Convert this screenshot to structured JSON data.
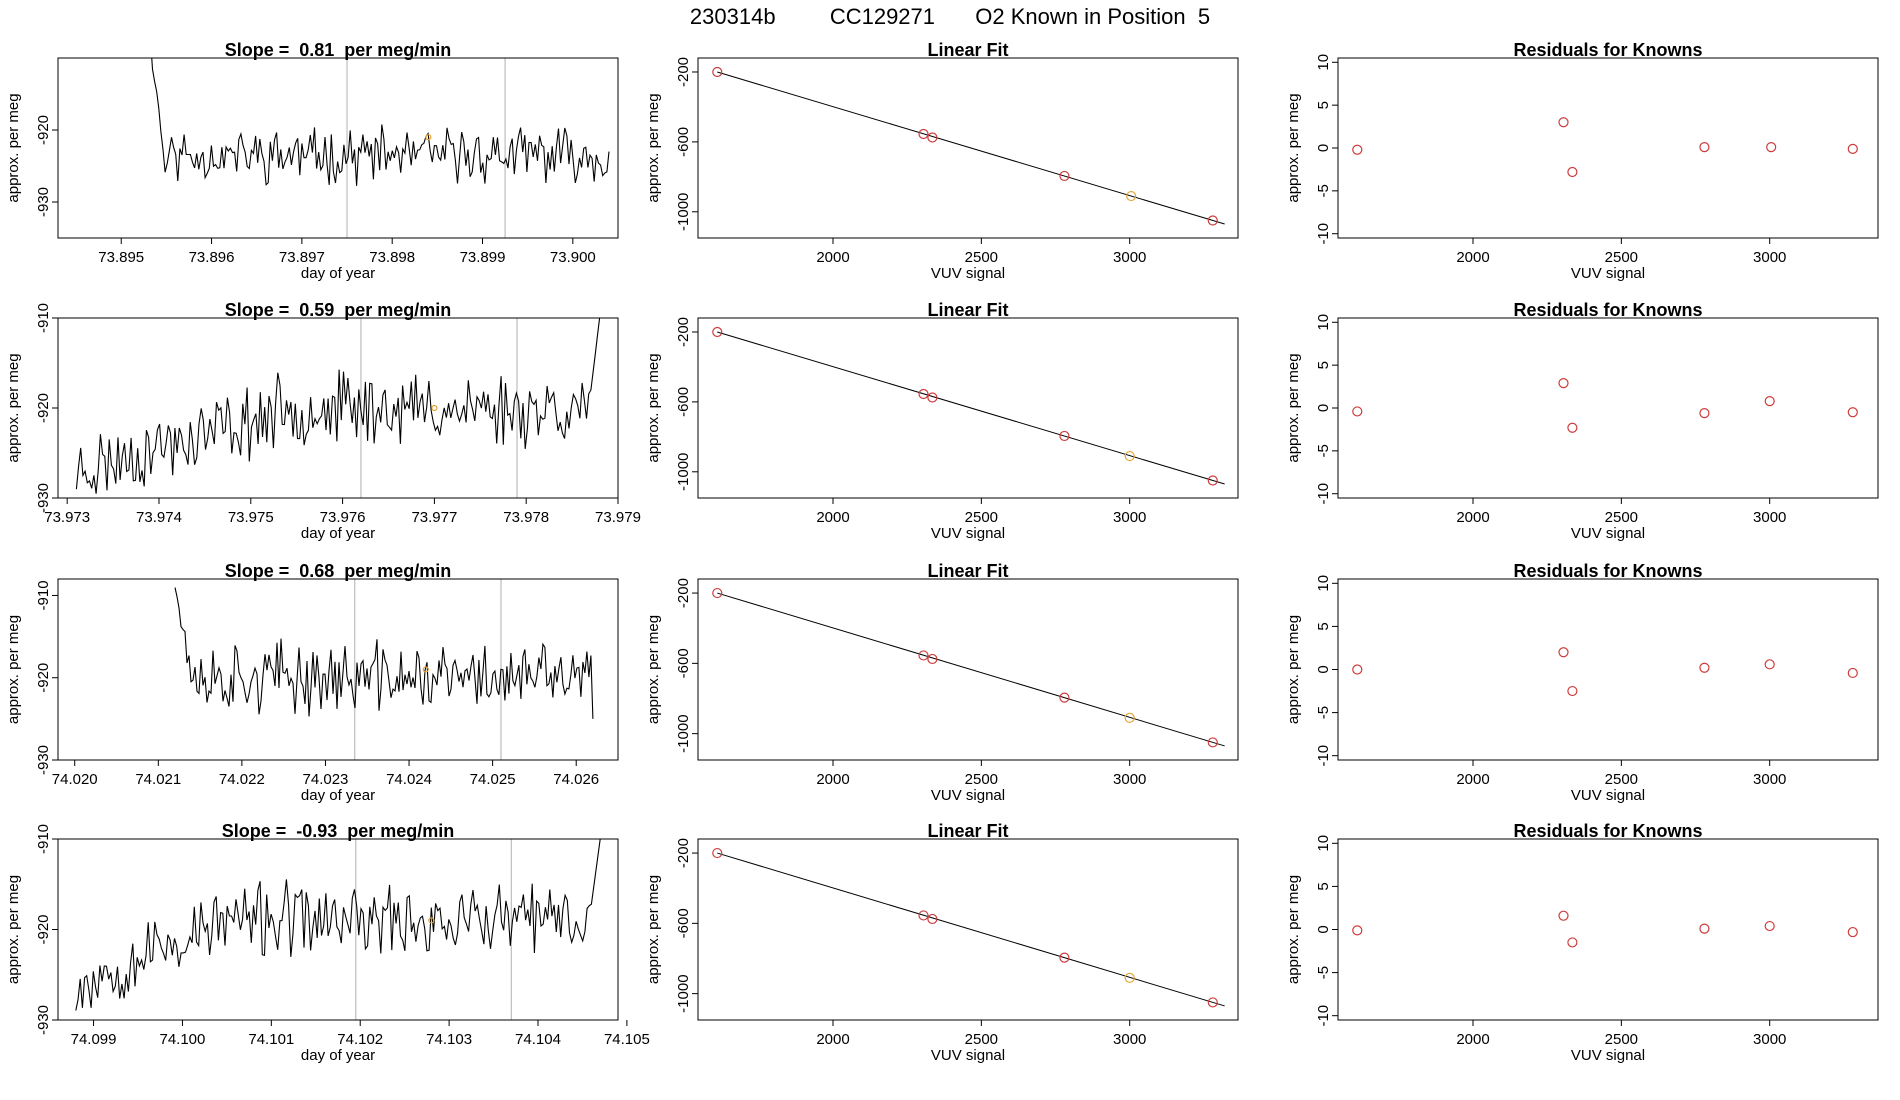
{
  "header": {
    "run_id": "230314b",
    "cylinder": "CC129271",
    "description": "O2 Known in Position  5"
  },
  "colors": {
    "trace": "#000000",
    "marker_red": "#cd3b3b",
    "marker_orange": "#e8a330",
    "vline": "#bdbdbd"
  },
  "chart_data": [
    {
      "id": "ts-1",
      "type": "line",
      "title": "Slope =  0.81  per meg/min",
      "xlabel": "day of year",
      "ylabel": "approx. per meg",
      "xlim": [
        73.8943,
        73.9005
      ],
      "ylim": [
        -935,
        -910
      ],
      "xticks": [
        "73.895",
        "73.896",
        "73.897",
        "73.898",
        "73.899",
        "73.900"
      ],
      "yticks": [
        "-920",
        "-930"
      ],
      "vlines": [
        73.8975,
        73.89925
      ],
      "series": [
        {
          "start": 73.8953,
          "end": 73.9004,
          "n": 220,
          "mean": -923.5,
          "amp": 2.8,
          "seed": 11,
          "spike_x": 73.8953,
          "spike_y": -906,
          "spike_len": 8,
          "end_y": -923
        }
      ],
      "marker": {
        "x": 73.8984,
        "y": -921
      }
    },
    {
      "id": "ts-2",
      "type": "line",
      "title": "Slope =  0.59  per meg/min",
      "xlabel": "day of year",
      "ylabel": "approx. per meg",
      "xlim": [
        73.9729,
        73.979
      ],
      "ylim": [
        -930,
        -910
      ],
      "xticks": [
        "73.973",
        "73.974",
        "73.975",
        "73.976",
        "73.977",
        "73.978",
        "73.979"
      ],
      "yticks": [
        "-910",
        "-920",
        "-930"
      ],
      "vlines": [
        73.9762,
        73.9779
      ],
      "series": [
        {
          "start": 73.9731,
          "end": 73.9788,
          "n": 240,
          "mean": -920,
          "amp": 3.0,
          "seed": 23,
          "trend_start": -927,
          "trend_end": -920,
          "trend_until": 73.9755,
          "end_spike": -910
        }
      ],
      "marker": {
        "x": 73.977,
        "y": -920
      }
    },
    {
      "id": "ts-3",
      "type": "line",
      "title": "Slope =  0.68  per meg/min",
      "xlabel": "day of year",
      "ylabel": "approx. per meg",
      "xlim": [
        74.0198,
        74.0265
      ],
      "ylim": [
        -930,
        -908
      ],
      "xticks": [
        "74.020",
        "74.021",
        "74.022",
        "74.023",
        "74.024",
        "74.025",
        "74.026"
      ],
      "yticks": [
        "-910",
        "-920",
        "-930"
      ],
      "vlines": [
        74.02335,
        74.0251
      ],
      "series": [
        {
          "start": 74.0212,
          "end": 74.0262,
          "n": 210,
          "mean": -920,
          "amp": 3.2,
          "seed": 37,
          "spike_x": 74.0212,
          "spike_y": -908,
          "spike_len": 8,
          "end_y": -925
        }
      ],
      "marker": {
        "x": 74.0242,
        "y": -919
      }
    },
    {
      "id": "ts-4",
      "type": "line",
      "title": "Slope =  -0.93  per meg/min",
      "xlabel": "day of year",
      "ylabel": "approx. per meg",
      "xlim": [
        74.0986,
        74.1049
      ],
      "ylim": [
        -930,
        -910
      ],
      "xticks": [
        "74.099",
        "74.100",
        "74.101",
        "74.102",
        "74.103",
        "74.104",
        "74.105"
      ],
      "yticks": [
        "-910",
        "-920",
        "-930"
      ],
      "vlines": [
        74.10195,
        74.1037
      ],
      "series": [
        {
          "start": 74.0988,
          "end": 74.1047,
          "n": 240,
          "mean": -919,
          "amp": 3.0,
          "seed": 53,
          "trend_start": -926,
          "trend_end": -919,
          "trend_until": 74.1005,
          "end_spike": -910
        }
      ],
      "marker": {
        "x": 74.1028,
        "y": -919
      }
    },
    {
      "id": "fit-1",
      "type": "scatter",
      "title": "Linear Fit",
      "xlabel": "VUV signal",
      "ylabel": "approx. per meg",
      "xlim": [
        1545,
        3365
      ],
      "ylim": [
        -1150,
        -120
      ],
      "xticks": [
        "2000",
        "2500",
        "3000"
      ],
      "yticks": [
        "-200",
        "-600",
        "-1000"
      ],
      "x": [
        1610,
        2305,
        2335,
        2780,
        3005,
        3280
      ],
      "y": [
        -200,
        -555,
        -575,
        -795,
        -910,
        -1050
      ],
      "point_colors": [
        "red",
        "red",
        "red",
        "red",
        "orange",
        "red"
      ],
      "fit": {
        "x": [
          1610,
          3320
        ],
        "y": [
          -200,
          -1070
        ]
      }
    },
    {
      "id": "fit-2",
      "type": "scatter",
      "title": "Linear Fit",
      "xlabel": "VUV signal",
      "ylabel": "approx. per meg",
      "xlim": [
        1545,
        3365
      ],
      "ylim": [
        -1150,
        -120
      ],
      "xticks": [
        "2000",
        "2500",
        "3000"
      ],
      "yticks": [
        "-200",
        "-600",
        "-1000"
      ],
      "x": [
        1610,
        2305,
        2335,
        2780,
        3000,
        3280
      ],
      "y": [
        -200,
        -555,
        -575,
        -795,
        -910,
        -1050
      ],
      "point_colors": [
        "red",
        "red",
        "red",
        "red",
        "orange",
        "red"
      ],
      "fit": {
        "x": [
          1610,
          3320
        ],
        "y": [
          -200,
          -1070
        ]
      }
    },
    {
      "id": "fit-3",
      "type": "scatter",
      "title": "Linear Fit",
      "xlabel": "VUV signal",
      "ylabel": "approx. per meg",
      "xlim": [
        1545,
        3365
      ],
      "ylim": [
        -1150,
        -120
      ],
      "xticks": [
        "2000",
        "2500",
        "3000"
      ],
      "yticks": [
        "-200",
        "-600",
        "-1000"
      ],
      "x": [
        1610,
        2305,
        2335,
        2780,
        3000,
        3280
      ],
      "y": [
        -200,
        -555,
        -575,
        -795,
        -910,
        -1050
      ],
      "point_colors": [
        "red",
        "red",
        "red",
        "red",
        "orange",
        "red"
      ],
      "fit": {
        "x": [
          1610,
          3320
        ],
        "y": [
          -200,
          -1070
        ]
      }
    },
    {
      "id": "fit-4",
      "type": "scatter",
      "title": "Linear Fit",
      "xlabel": "VUV signal",
      "ylabel": "approx. per meg",
      "xlim": [
        1545,
        3365
      ],
      "ylim": [
        -1150,
        -120
      ],
      "xticks": [
        "2000",
        "2500",
        "3000"
      ],
      "yticks": [
        "-200",
        "-600",
        "-1000"
      ],
      "x": [
        1610,
        2305,
        2335,
        2780,
        3000,
        3280
      ],
      "y": [
        -200,
        -555,
        -575,
        -795,
        -910,
        -1050
      ],
      "point_colors": [
        "red",
        "red",
        "red",
        "red",
        "orange",
        "red"
      ],
      "fit": {
        "x": [
          1610,
          3320
        ],
        "y": [
          -200,
          -1070
        ]
      }
    },
    {
      "id": "res-1",
      "type": "scatter",
      "title": "Residuals for Knowns",
      "xlabel": "VUV signal",
      "ylabel": "approx. per meg",
      "xlim": [
        1545,
        3365
      ],
      "ylim": [
        -10.5,
        10.5
      ],
      "xticks": [
        "2000",
        "2500",
        "3000"
      ],
      "yticks": [
        "10",
        "5",
        "0",
        "-5",
        "-10"
      ],
      "x": [
        1610,
        2305,
        2335,
        2780,
        3005,
        3280
      ],
      "y": [
        -0.2,
        3.0,
        -2.8,
        0.1,
        0.1,
        -0.1
      ],
      "point_colors": [
        "red",
        "red",
        "red",
        "red",
        "red",
        "red"
      ]
    },
    {
      "id": "res-2",
      "type": "scatter",
      "title": "Residuals for Knowns",
      "xlabel": "VUV signal",
      "ylabel": "approx. per meg",
      "xlim": [
        1545,
        3365
      ],
      "ylim": [
        -10.5,
        10.5
      ],
      "xticks": [
        "2000",
        "2500",
        "3000"
      ],
      "yticks": [
        "10",
        "5",
        "0",
        "-5",
        "-10"
      ],
      "x": [
        1610,
        2305,
        2335,
        2780,
        3000,
        3280
      ],
      "y": [
        -0.4,
        2.9,
        -2.3,
        -0.6,
        0.8,
        -0.5
      ],
      "point_colors": [
        "red",
        "red",
        "red",
        "red",
        "red",
        "red"
      ]
    },
    {
      "id": "res-3",
      "type": "scatter",
      "title": "Residuals for Knowns",
      "xlabel": "VUV signal",
      "ylabel": "approx. per meg",
      "xlim": [
        1545,
        3365
      ],
      "ylim": [
        -10.5,
        10.5
      ],
      "xticks": [
        "2000",
        "2500",
        "3000"
      ],
      "yticks": [
        "10",
        "5",
        "0",
        "-5",
        "-10"
      ],
      "x": [
        1610,
        2305,
        2335,
        2780,
        3000,
        3280
      ],
      "y": [
        0.0,
        2.0,
        -2.5,
        0.2,
        0.6,
        -0.4
      ],
      "point_colors": [
        "red",
        "red",
        "red",
        "red",
        "red",
        "red"
      ]
    },
    {
      "id": "res-4",
      "type": "scatter",
      "title": "Residuals for Knowns",
      "xlabel": "VUV signal",
      "ylabel": "approx. per meg",
      "xlim": [
        1545,
        3365
      ],
      "ylim": [
        -10.5,
        10.5
      ],
      "xticks": [
        "2000",
        "2500",
        "3000"
      ],
      "yticks": [
        "10",
        "5",
        "0",
        "-5",
        "-10"
      ],
      "x": [
        1610,
        2305,
        2335,
        2780,
        3000,
        3280
      ],
      "y": [
        -0.1,
        1.6,
        -1.5,
        0.1,
        0.4,
        -0.3
      ],
      "point_colors": [
        "red",
        "red",
        "red",
        "red",
        "red",
        "red"
      ]
    }
  ]
}
